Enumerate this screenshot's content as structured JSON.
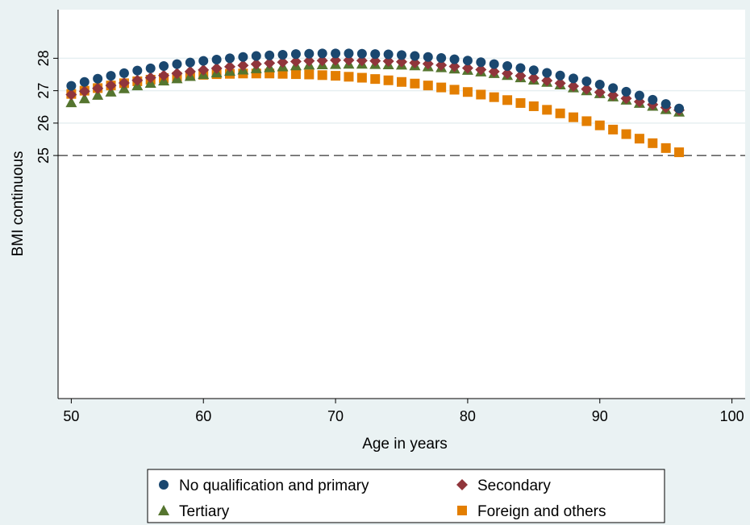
{
  "chart_data": {
    "type": "scatter",
    "title": "",
    "xlabel": "Age in years",
    "ylabel": "BMI continuous",
    "xlim": [
      49,
      101
    ],
    "ylim": [
      17.5,
      29.5
    ],
    "x_ticks": [
      50,
      60,
      70,
      80,
      90,
      100
    ],
    "y_ticks": [
      25,
      26,
      27,
      28
    ],
    "reference_line": {
      "y": 25,
      "style": "dashed"
    },
    "grid": "horizontal",
    "legend_position": "bottom",
    "x": [
      50,
      51,
      52,
      53,
      54,
      55,
      56,
      57,
      58,
      59,
      60,
      61,
      62,
      63,
      64,
      65,
      66,
      67,
      68,
      69,
      70,
      71,
      72,
      73,
      74,
      75,
      76,
      77,
      78,
      79,
      80,
      81,
      82,
      83,
      84,
      85,
      86,
      87,
      88,
      89,
      90,
      91,
      92,
      93,
      94,
      95,
      96
    ],
    "series": [
      {
        "name": "No qualification and primary",
        "marker": "circle",
        "color": "#1a476f",
        "values": [
          27.15,
          27.27,
          27.37,
          27.46,
          27.54,
          27.62,
          27.69,
          27.76,
          27.82,
          27.87,
          27.92,
          27.96,
          28.0,
          28.04,
          28.07,
          28.09,
          28.11,
          28.13,
          28.14,
          28.15,
          28.15,
          28.15,
          28.14,
          28.13,
          28.12,
          28.1,
          28.07,
          28.04,
          28.01,
          27.97,
          27.93,
          27.88,
          27.82,
          27.76,
          27.7,
          27.63,
          27.55,
          27.47,
          27.38,
          27.29,
          27.19,
          27.08,
          26.97,
          26.85,
          26.72,
          26.59,
          26.45
        ]
      },
      {
        "name": "Secondary",
        "marker": "diamond",
        "color": "#90353b",
        "values": [
          26.88,
          26.98,
          27.07,
          27.16,
          27.24,
          27.32,
          27.4,
          27.47,
          27.53,
          27.59,
          27.64,
          27.69,
          27.74,
          27.78,
          27.82,
          27.85,
          27.88,
          27.9,
          27.92,
          27.93,
          27.94,
          27.94,
          27.93,
          27.92,
          27.91,
          27.89,
          27.86,
          27.83,
          27.79,
          27.75,
          27.7,
          27.65,
          27.59,
          27.53,
          27.46,
          27.39,
          27.31,
          27.23,
          27.14,
          27.05,
          26.95,
          26.86,
          26.76,
          26.66,
          26.57,
          26.48,
          26.4
        ]
      },
      {
        "name": "Tertiary",
        "marker": "triangle",
        "color": "#55752f",
        "values": [
          26.64,
          26.76,
          26.87,
          26.97,
          27.07,
          27.16,
          27.24,
          27.31,
          27.38,
          27.45,
          27.51,
          27.56,
          27.61,
          27.65,
          27.69,
          27.72,
          27.75,
          27.78,
          27.8,
          27.81,
          27.82,
          27.83,
          27.83,
          27.82,
          27.81,
          27.8,
          27.78,
          27.75,
          27.72,
          27.68,
          27.64,
          27.59,
          27.54,
          27.48,
          27.41,
          27.34,
          27.27,
          27.19,
          27.1,
          27.01,
          26.92,
          26.82,
          26.72,
          26.62,
          26.53,
          26.43,
          26.35
        ]
      },
      {
        "name": "Foreign and others",
        "marker": "square",
        "color": "#e37e00",
        "values": [
          26.9,
          27.0,
          27.08,
          27.16,
          27.23,
          27.29,
          27.34,
          27.39,
          27.43,
          27.46,
          27.49,
          27.51,
          27.52,
          27.53,
          27.53,
          27.53,
          27.52,
          27.51,
          27.5,
          27.48,
          27.46,
          27.43,
          27.4,
          27.36,
          27.32,
          27.27,
          27.22,
          27.16,
          27.1,
          27.03,
          26.96,
          26.88,
          26.8,
          26.71,
          26.62,
          26.52,
          26.41,
          26.3,
          26.18,
          26.06,
          25.93,
          25.8,
          25.66,
          25.52,
          25.38,
          25.23,
          25.1
        ]
      }
    ]
  }
}
